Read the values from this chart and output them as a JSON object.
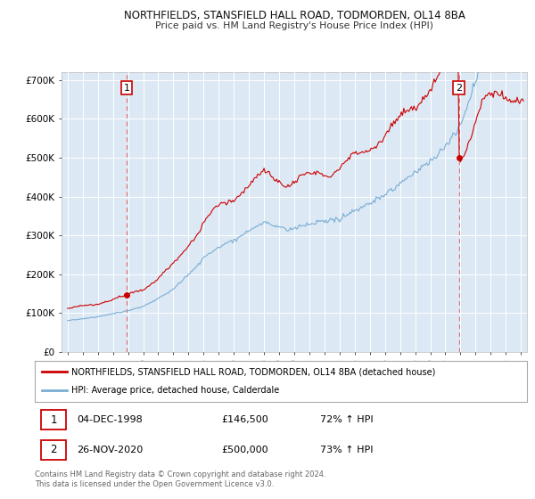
{
  "title_line1": "NORTHFIELDS, STANSFIELD HALL ROAD, TODMORDEN, OL14 8BA",
  "title_line2": "Price paid vs. HM Land Registry's House Price Index (HPI)",
  "legend_line1": "NORTHFIELDS, STANSFIELD HALL ROAD, TODMORDEN, OL14 8BA (detached house)",
  "legend_line2": "HPI: Average price, detached house, Calderdale",
  "sale1_label": "1",
  "sale1_date": "04-DEC-1998",
  "sale1_price": "£146,500",
  "sale1_hpi": "72% ↑ HPI",
  "sale1_year": 1998.92,
  "sale1_value": 146500,
  "sale2_label": "2",
  "sale2_date": "26-NOV-2020",
  "sale2_price": "£500,000",
  "sale2_hpi": "73% ↑ HPI",
  "sale2_year": 2020.9,
  "sale2_value": 500000,
  "red_color": "#cc0000",
  "blue_color": "#7aadd4",
  "bg_color": "#dce9f5",
  "grid_color": "#ffffff",
  "vline_color": "#e87070",
  "ylim": [
    0,
    720000
  ],
  "yticks": [
    0,
    100000,
    200000,
    300000,
    400000,
    500000,
    600000,
    700000
  ],
  "ytick_labels": [
    "£0",
    "£100K",
    "£200K",
    "£300K",
    "£400K",
    "£500K",
    "£600K",
    "£700K"
  ],
  "footer": "Contains HM Land Registry data © Crown copyright and database right 2024.\nThis data is licensed under the Open Government Licence v3.0."
}
